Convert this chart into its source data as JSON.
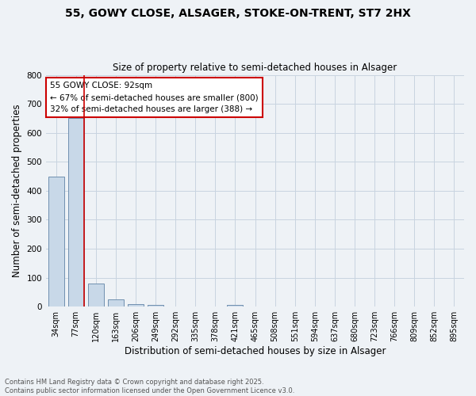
{
  "title_line1": "55, GOWY CLOSE, ALSAGER, STOKE-ON-TRENT, ST7 2HX",
  "title_line2": "Size of property relative to semi-detached houses in Alsager",
  "xlabel": "Distribution of semi-detached houses by size in Alsager",
  "ylabel": "Number of semi-detached properties",
  "categories": [
    "34sqm",
    "77sqm",
    "120sqm",
    "163sqm",
    "206sqm",
    "249sqm",
    "292sqm",
    "335sqm",
    "378sqm",
    "421sqm",
    "465sqm",
    "508sqm",
    "551sqm",
    "594sqm",
    "637sqm",
    "680sqm",
    "723sqm",
    "766sqm",
    "809sqm",
    "852sqm",
    "895sqm"
  ],
  "values": [
    450,
    650,
    80,
    25,
    8,
    5,
    0,
    0,
    0,
    5,
    0,
    0,
    0,
    0,
    0,
    0,
    0,
    0,
    0,
    0,
    0
  ],
  "bar_color": "#c8d8e8",
  "bar_edge_color": "#7090b0",
  "vline_x_index": 1,
  "vline_color": "#cc0000",
  "annotation_text": "55 GOWY CLOSE: 92sqm\n← 67% of semi-detached houses are smaller (800)\n32% of semi-detached houses are larger (388) →",
  "annotation_box_facecolor": "white",
  "annotation_box_edgecolor": "#cc0000",
  "ylim": [
    0,
    800
  ],
  "yticks": [
    0,
    100,
    200,
    300,
    400,
    500,
    600,
    700,
    800
  ],
  "grid_color": "#c8d4e0",
  "footer_line1": "Contains HM Land Registry data © Crown copyright and database right 2025.",
  "footer_line2": "Contains public sector information licensed under the Open Government Licence v3.0.",
  "bg_color": "#eef2f6",
  "fig_width": 6.0,
  "fig_height": 5.0,
  "dpi": 100
}
